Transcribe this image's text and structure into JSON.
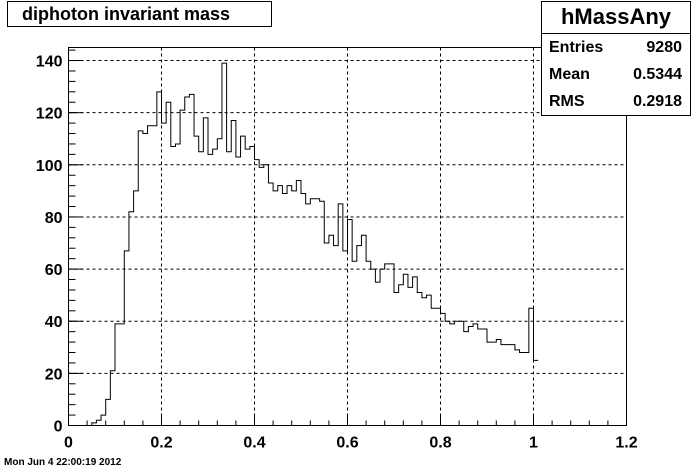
{
  "title": "diphoton invariant mass",
  "timestamp": "Mon Jun  4 22:00:19 2012",
  "stats": {
    "name": "hMassAny",
    "rows": [
      {
        "label": "Entries",
        "value": "9280"
      },
      {
        "label": "Mean",
        "value": "0.5344"
      },
      {
        "label": "RMS",
        "value": "0.2918"
      }
    ]
  },
  "chart_data": {
    "type": "bar",
    "title": "diphoton invariant mass",
    "xlabel": "",
    "ylabel": "",
    "xlim": [
      0,
      1.2
    ],
    "ylim": [
      0,
      145
    ],
    "grid": true,
    "bin_width": 0.01,
    "x_start": 0,
    "xticks": [
      "0",
      "0.2",
      "0.4",
      "0.6",
      "0.8",
      "1",
      "1.2"
    ],
    "yticks": [
      "0",
      "20",
      "40",
      "60",
      "80",
      "100",
      "120",
      "140"
    ],
    "values": [
      0,
      0,
      0,
      0,
      0,
      1,
      2,
      4,
      10,
      21,
      39,
      39,
      67,
      82,
      90,
      113,
      112,
      115,
      115,
      128,
      116,
      124,
      107,
      108,
      121,
      126,
      127,
      111,
      105,
      118,
      104,
      106,
      110,
      139,
      105,
      117,
      103,
      111,
      106,
      107,
      102,
      99,
      100,
      93,
      90,
      92,
      89,
      92,
      90,
      94,
      89,
      85,
      87,
      87,
      86,
      70,
      73,
      69,
      85,
      67,
      79,
      63,
      69,
      73,
      63,
      60,
      55,
      60,
      62,
      62,
      51,
      54,
      58,
      53,
      57,
      51,
      49,
      50,
      45,
      45,
      43,
      40,
      39,
      40,
      40,
      36,
      38,
      39,
      37,
      37,
      32,
      32,
      33,
      31,
      31,
      31,
      29,
      28,
      28,
      45,
      25
    ],
    "note": "values listed per bin of width 0.01 starting at x=0"
  }
}
